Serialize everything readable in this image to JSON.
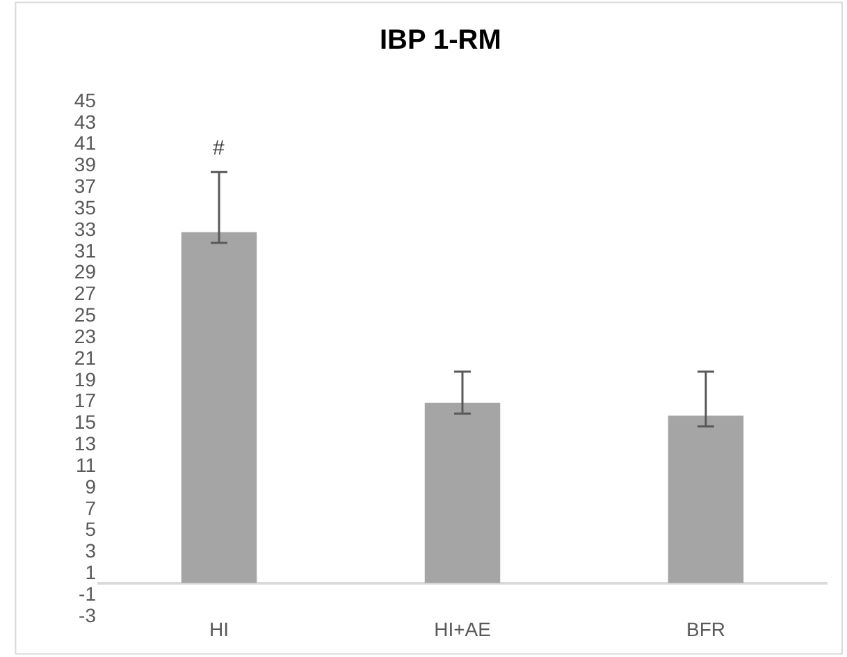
{
  "chart_data": {
    "type": "bar",
    "title": "IBP 1-RM",
    "categories": [
      "HI",
      "HI+AE",
      "BFR"
    ],
    "values": [
      32.7,
      16.8,
      15.6
    ],
    "errors": [
      [
        31.7,
        38.3
      ],
      [
        15.8,
        19.7
      ],
      [
        14.6,
        19.7
      ]
    ],
    "color": "#a5a5a5",
    "ylim": [
      -3,
      45
    ],
    "yticks": [
      -3,
      -1,
      1,
      3,
      5,
      7,
      9,
      11,
      13,
      15,
      17,
      19,
      21,
      23,
      25,
      27,
      29,
      31,
      33,
      35,
      37,
      39,
      41,
      43,
      45
    ],
    "annotations": [
      "#"
    ]
  }
}
